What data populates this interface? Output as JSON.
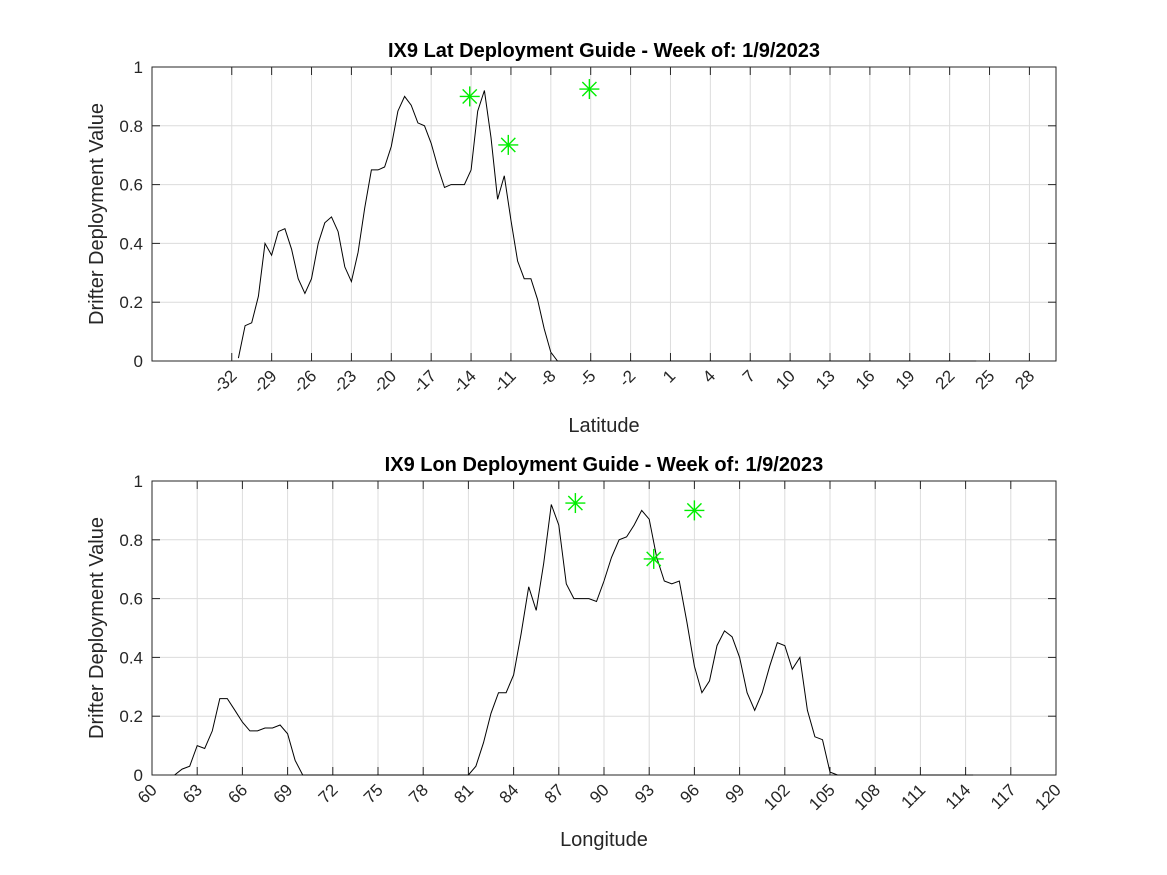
{
  "chart_data": [
    {
      "type": "line",
      "title": "IX9 Lat Deployment Guide - Week of: 1/9/2023",
      "xlabel": "Latitude",
      "ylabel": "Drifter Deployment Value",
      "xlim": [
        -38,
        30
      ],
      "ylim": [
        0,
        1
      ],
      "grid": true,
      "xtick_rotation": 45,
      "xticks": [
        -32,
        -29,
        -26,
        -23,
        -20,
        -17,
        -14,
        -11,
        -8,
        -5,
        -2,
        1,
        4,
        7,
        10,
        13,
        16,
        19,
        22,
        25,
        28
      ],
      "xtick_labels": [
        "-32",
        "-29",
        "-26",
        "-23",
        "-20",
        "-17",
        "-14",
        "-11",
        "-8",
        "-5",
        "-2",
        "1",
        "4",
        "7",
        "10",
        "13",
        "16",
        "19",
        "22",
        "25",
        "28"
      ],
      "yticks": [
        0,
        0.2,
        0.4,
        0.6,
        0.8,
        1
      ],
      "ytick_labels": [
        "0",
        "0.2",
        "0.4",
        "0.6",
        "0.8",
        "1"
      ],
      "series": [
        {
          "x": [
            -31.5,
            -31,
            -30.5,
            -30,
            -29.5,
            -29,
            -28.5,
            -28,
            -27.5,
            -27,
            -26.5,
            -26,
            -25.5,
            -25,
            -24.5,
            -24,
            -23.5,
            -23,
            -22.5,
            -22,
            -21.5,
            -21,
            -20.5,
            -20,
            -19.5,
            -19,
            -18.5,
            -18,
            -17.5,
            -17,
            -16.5,
            -16,
            -15.5,
            -15,
            -14.5,
            -14,
            -13.5,
            -13,
            -12.5,
            -12,
            -11.5,
            -11,
            -10.5,
            -10,
            -9.5,
            -9,
            -8.5,
            -8,
            -7.5,
            -7,
            -6.5,
            -6,
            -5.5,
            -5,
            -4.5,
            -4,
            -3.5,
            -3,
            -2.5,
            -2,
            -1.5,
            -1,
            -0.5,
            0,
            0.5,
            1,
            1.5,
            2,
            2.5,
            3,
            3.5,
            4,
            4.5,
            5,
            5.5,
            6,
            6.5,
            7,
            9.5,
            10,
            10.5,
            11,
            11.5,
            12,
            12.5,
            13,
            13.5,
            14,
            14.5,
            15,
            15.5,
            16,
            16.5,
            17,
            17.5,
            18,
            18.5,
            19,
            19.5,
            20,
            20.5,
            21,
            21.5,
            22,
            22.5,
            23,
            23.5,
            24
          ],
          "y": [
            0.01,
            0.12,
            0.13,
            0.22,
            0.4,
            0.36,
            0.44,
            0.45,
            0.38,
            0.28,
            0.23,
            0.28,
            0.4,
            0.47,
            0.49,
            0.44,
            0.32,
            0.27,
            0.37,
            0.52,
            0.65,
            0.65,
            0.66,
            0.73,
            0.85,
            0.9,
            0.87,
            0.81,
            0.8,
            0.74,
            0.66,
            0.59,
            0.6,
            0.6,
            0.6,
            0.65,
            0.85,
            0.92,
            0.76,
            0.55,
            0.63,
            0.48,
            0.34,
            0.28,
            0.28,
            0.21,
            0.11,
            0.03,
            0.0,
            0.0,
            0.0,
            0.0,
            0.0,
            0.0,
            0.0,
            0.0,
            0.0,
            0.0,
            0.0,
            0.0,
            0.0,
            0.0,
            0.0,
            0.0,
            0.0,
            0.0,
            0.0,
            0.0,
            0.0,
            0.0,
            0.0,
            0.0,
            0.0,
            0.0,
            0.0,
            0.0,
            0.0,
            0.0,
            0.0,
            0.0,
            0.0,
            0.0,
            0.0,
            0.0,
            0.0,
            0.0,
            0.0,
            0.0,
            0.0,
            0.0,
            0.0,
            0.0,
            0.0,
            0.0,
            0.0,
            0.0,
            0.0,
            0.0,
            0.0,
            0.0,
            0.0,
            0.0,
            0.0,
            0.0,
            0.0,
            0.0,
            0.0,
            0.0
          ]
        }
      ],
      "markers": [
        {
          "x": -14.1,
          "y": 0.9
        },
        {
          "x": -11.2,
          "y": 0.735
        },
        {
          "x": -5.1,
          "y": 0.925
        }
      ],
      "marker_color": "#00ee00"
    },
    {
      "type": "line",
      "title": "IX9 Lon Deployment Guide - Week of: 1/9/2023",
      "xlabel": "Longitude",
      "ylabel": "Drifter Deployment Value",
      "xlim": [
        60,
        120
      ],
      "ylim": [
        0,
        1
      ],
      "grid": true,
      "xtick_rotation": 45,
      "xticks": [
        60,
        63,
        66,
        69,
        72,
        75,
        78,
        81,
        84,
        87,
        90,
        93,
        96,
        99,
        102,
        105,
        108,
        111,
        114,
        117,
        120
      ],
      "xtick_labels": [
        "60",
        "63",
        "66",
        "69",
        "72",
        "75",
        "78",
        "81",
        "84",
        "87",
        "90",
        "93",
        "96",
        "99",
        "102",
        "105",
        "108",
        "111",
        "114",
        "117",
        "120"
      ],
      "yticks": [
        0,
        0.2,
        0.4,
        0.6,
        0.8,
        1
      ],
      "ytick_labels": [
        "0",
        "0.2",
        "0.4",
        "0.6",
        "0.8",
        "1"
      ],
      "series": [
        {
          "x": [
            61.5,
            62,
            62.5,
            63,
            63.5,
            64,
            64.5,
            65,
            65.5,
            66,
            66.5,
            67,
            67.5,
            68,
            68.5,
            69,
            69.5,
            70,
            70.5,
            71,
            71.5,
            72,
            72.5,
            73,
            73.5,
            74,
            74.5,
            75,
            75.5,
            76,
            77.5,
            78,
            78.5,
            79,
            79.5,
            80,
            80.5,
            81,
            81.5,
            82,
            82.5,
            83,
            83.5,
            84,
            84.5,
            85,
            85.5,
            86,
            86.5,
            87,
            87.5,
            88,
            88.5,
            89,
            89.5,
            90,
            90.5,
            91,
            91.5,
            92,
            92.5,
            93,
            93.5,
            94,
            94.5,
            95,
            95.5,
            96,
            96.5,
            97,
            97.5,
            98,
            98.5,
            99,
            99.5,
            100,
            100.5,
            101,
            101.5,
            102,
            102.5,
            103,
            103.5,
            104,
            104.5,
            105,
            105.5,
            106,
            106.5,
            107,
            107.5,
            108,
            108.5,
            109,
            109.5,
            110,
            110.5,
            111,
            111.5,
            112,
            112.5,
            113,
            113.5,
            114,
            114.5
          ],
          "y": [
            0.0,
            0.02,
            0.03,
            0.1,
            0.09,
            0.15,
            0.26,
            0.26,
            0.22,
            0.18,
            0.15,
            0.15,
            0.16,
            0.16,
            0.17,
            0.14,
            0.05,
            0.0,
            0.0,
            0.0,
            0.0,
            0.0,
            0.0,
            0.0,
            0.0,
            0.0,
            0.0,
            0.0,
            0.0,
            0.0,
            0.0,
            0.0,
            0.0,
            0.0,
            0.0,
            0.0,
            0.0,
            0.0,
            0.03,
            0.11,
            0.21,
            0.28,
            0.28,
            0.34,
            0.48,
            0.64,
            0.56,
            0.72,
            0.92,
            0.85,
            0.65,
            0.6,
            0.6,
            0.6,
            0.59,
            0.66,
            0.74,
            0.8,
            0.81,
            0.85,
            0.9,
            0.87,
            0.74,
            0.66,
            0.65,
            0.66,
            0.52,
            0.37,
            0.28,
            0.32,
            0.44,
            0.49,
            0.47,
            0.4,
            0.28,
            0.22,
            0.28,
            0.37,
            0.45,
            0.44,
            0.36,
            0.4,
            0.22,
            0.13,
            0.12,
            0.01,
            0.0,
            0.0,
            0.0,
            0.0,
            0.0,
            0.0,
            0.0,
            0.0,
            0.0,
            0.0,
            0.0,
            0.0,
            0.0,
            0.0,
            0.0,
            0.0,
            0.0,
            0.0,
            0.0
          ]
        }
      ],
      "markers": [
        {
          "x": 88.1,
          "y": 0.925
        },
        {
          "x": 93.3,
          "y": 0.735
        },
        {
          "x": 96.0,
          "y": 0.9
        }
      ],
      "marker_color": "#00ee00"
    }
  ]
}
